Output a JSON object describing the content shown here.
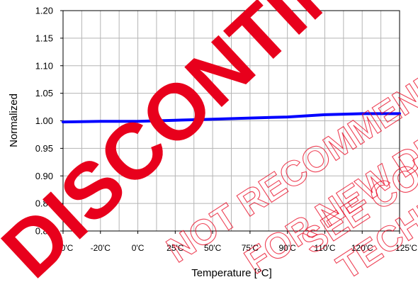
{
  "chart_data": {
    "type": "line",
    "title": "",
    "xlabel": "Temperature [°C]",
    "ylabel": "Normalized",
    "categories": [
      "-40'C",
      "-20'C",
      "0'C",
      "25'C",
      "50'C",
      "75'C",
      "90'C",
      "110'C",
      "120'C",
      "125'C"
    ],
    "ylim": [
      0.8,
      1.2
    ],
    "yticks": [
      "0.80",
      "0.85",
      "0.90",
      "0.95",
      "1.00",
      "1.05",
      "1.10",
      "1.15",
      "1.20"
    ],
    "grid": true,
    "series": [
      {
        "values": [
          0.998,
          0.999,
          0.999,
          1.001,
          1.003,
          1.005,
          1.007,
          1.011,
          1.013,
          1.013
        ],
        "color": "#0000ff"
      }
    ]
  },
  "watermark": {
    "primary": "DISCONTINUED",
    "secondary": [
      "NOT RECOMMENDED",
      "FOR NEW DESIGNS",
      "SEE CONTACT",
      "TECHNICAL SUPPORT"
    ],
    "primary_color": "#e8001c"
  }
}
